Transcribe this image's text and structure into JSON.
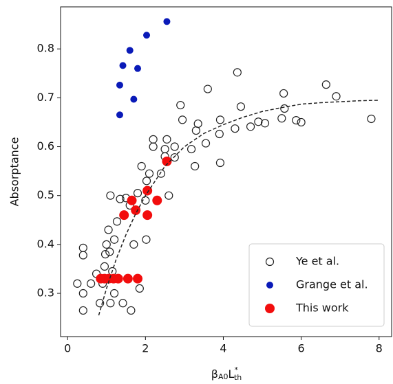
{
  "chart_data": {
    "type": "scatter",
    "y_label": "Absorptance",
    "x_label_parts": [
      "β",
      "A0",
      "L",
      "*",
      "th"
    ],
    "xlim": [
      -0.18,
      8.34
    ],
    "ylim": [
      0.2115,
      0.886
    ],
    "xticks": [
      0,
      2,
      4,
      6,
      8
    ],
    "yticks": [
      0.3,
      0.4,
      0.5,
      0.6,
      0.7,
      0.8
    ],
    "legend": "lower right",
    "series": [
      {
        "name": "Ye et al.",
        "color": "#222222",
        "marker": "open",
        "size": 5.5,
        "x": [
          0.25,
          0.4,
          0.4,
          0.4,
          0.4,
          0.6,
          0.74,
          0.83,
          0.9,
          0.95,
          0.97,
          1.0,
          1.05,
          1.1,
          1.08,
          1.15,
          1.2,
          1.1,
          1.2,
          1.27,
          1.35,
          1.42,
          1.5,
          1.6,
          1.63,
          1.7,
          1.8,
          1.85,
          1.9,
          2.0,
          2.02,
          2.03,
          2.1,
          2.2,
          2.2,
          2.4,
          2.5,
          2.55,
          2.5,
          2.6,
          2.75,
          2.75,
          2.9,
          2.95,
          3.18,
          3.27,
          3.3,
          3.35,
          3.6,
          3.55,
          3.9,
          3.92,
          3.92,
          4.3,
          4.36,
          4.45,
          4.7,
          4.9,
          5.07,
          5.5,
          5.55,
          5.57,
          5.87,
          6.0,
          6.64,
          6.9,
          7.8
        ],
        "y": [
          0.32,
          0.393,
          0.378,
          0.3,
          0.265,
          0.32,
          0.34,
          0.28,
          0.32,
          0.355,
          0.38,
          0.4,
          0.43,
          0.5,
          0.385,
          0.345,
          0.3,
          0.28,
          0.41,
          0.447,
          0.493,
          0.28,
          0.495,
          0.48,
          0.265,
          0.4,
          0.505,
          0.31,
          0.56,
          0.49,
          0.41,
          0.53,
          0.545,
          0.615,
          0.6,
          0.545,
          0.595,
          0.615,
          0.58,
          0.5,
          0.6,
          0.578,
          0.685,
          0.655,
          0.595,
          0.56,
          0.633,
          0.647,
          0.718,
          0.607,
          0.626,
          0.655,
          0.567,
          0.637,
          0.752,
          0.682,
          0.641,
          0.651,
          0.648,
          0.658,
          0.709,
          0.678,
          0.654,
          0.65,
          0.727,
          0.703,
          0.657
        ]
      },
      {
        "name": "Grange et al.",
        "color": "#0a1ab8",
        "marker": "filled",
        "size": 5,
        "x": [
          2.55,
          2.03,
          1.6,
          1.42,
          1.8,
          1.34,
          1.7,
          1.34
        ],
        "y": [
          0.856,
          0.828,
          0.797,
          0.766,
          0.76,
          0.726,
          0.697,
          0.665
        ]
      },
      {
        "name": "This work",
        "color": "#f20d0d",
        "marker": "filled",
        "size": 7,
        "x": [
          0.85,
          0.95,
          1.06,
          1.18,
          1.3,
          1.55,
          1.8,
          2.55,
          2.05,
          1.65,
          2.3,
          1.75,
          1.45,
          2.05
        ],
        "y": [
          0.33,
          0.33,
          0.33,
          0.33,
          0.33,
          0.33,
          0.33,
          0.57,
          0.51,
          0.49,
          0.49,
          0.47,
          0.46,
          0.46
        ]
      },
      {
        "color": "#222222",
        "marker": "dashed",
        "x": [
          0.8,
          1.0,
          1.25,
          1.5,
          1.75,
          2.0,
          2.5,
          3.0,
          3.5,
          4.0,
          4.5,
          5.0,
          5.5,
          6.0,
          6.5,
          7.0,
          7.5,
          8.0
        ],
        "y": [
          0.255,
          0.31,
          0.37,
          0.42,
          0.463,
          0.5,
          0.56,
          0.6,
          0.627,
          0.645,
          0.66,
          0.672,
          0.68,
          0.687,
          0.69,
          0.692,
          0.694,
          0.695
        ]
      }
    ]
  }
}
